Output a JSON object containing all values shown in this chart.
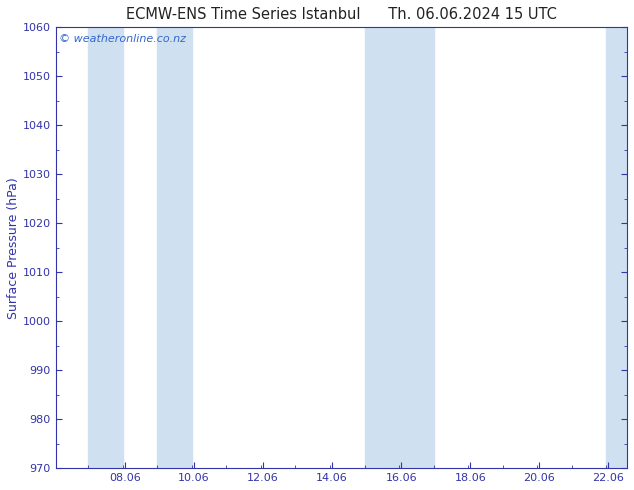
{
  "title_left": "ECMW-ENS Time Series Istanbul",
  "title_right": "Th. 06.06.2024 15 UTC",
  "ylabel": "Surface Pressure (hPa)",
  "ylim": [
    970,
    1060
  ],
  "ytick_major": 10,
  "bg_color": "#ffffff",
  "plot_bg_color": "#ffffff",
  "watermark": "© weatheronline.co.nz",
  "watermark_color": "#3366cc",
  "title_color": "#222222",
  "axis_color": "#3333aa",
  "tick_color": "#3333aa",
  "shade_color": "#cfe0f0",
  "shade_bands": [
    [
      7.0,
      8.0
    ],
    [
      9.0,
      10.0
    ],
    [
      15.0,
      16.0
    ],
    [
      16.0,
      17.0
    ],
    [
      22.0,
      22.6
    ]
  ],
  "xticks": [
    8.06,
    10.06,
    12.06,
    14.06,
    16.06,
    18.06,
    20.06,
    22.06
  ],
  "xtick_labels": [
    "08.06",
    "10.06",
    "12.06",
    "14.06",
    "16.06",
    "18.06",
    "20.06",
    "22.06"
  ],
  "xlim": [
    6.06,
    22.6
  ],
  "title_fontsize": 10.5,
  "label_fontsize": 9,
  "tick_fontsize": 8,
  "watermark_fontsize": 8
}
